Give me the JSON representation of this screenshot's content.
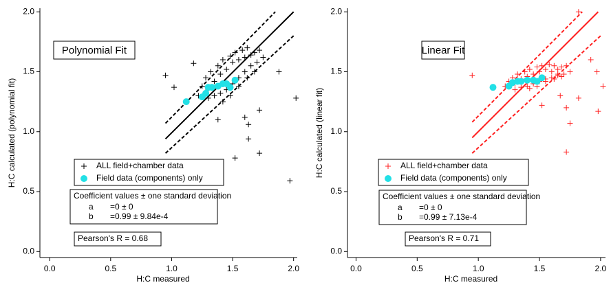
{
  "chart_data": [
    {
      "type": "scatter",
      "title": "Polynomial Fit",
      "ylabel": "H:C calculated (polynomial fit)",
      "xlabel": "H:C measured",
      "xlim": [
        -0.08,
        2.03
      ],
      "ylim": [
        -0.05,
        2.03
      ],
      "xticks": [
        {
          "value": 0,
          "label": "0.0"
        },
        {
          "value": 0.5,
          "label": "0.5"
        },
        {
          "value": 1,
          "label": "1.0"
        },
        {
          "value": 1.5,
          "label": "1.5"
        },
        {
          "value": 2,
          "label": "2.0"
        }
      ],
      "yticks": [
        {
          "value": 0,
          "label": "0.0"
        },
        {
          "value": 0.5,
          "label": "0.5"
        },
        {
          "value": 1,
          "label": "1.0"
        },
        {
          "value": 1.5,
          "label": "1.5"
        },
        {
          "value": 2,
          "label": "2.0"
        }
      ],
      "series": [
        {
          "name": "ALL field+chamber data",
          "color": "#000000",
          "marker": "plus",
          "x": [
            1.22,
            1.25,
            1.28,
            1.3,
            1.32,
            1.35,
            1.38,
            1.4,
            1.42,
            1.45,
            1.48,
            1.5,
            1.52,
            1.55,
            1.58,
            1.6,
            1.62,
            1.65,
            1.68,
            1.7,
            1.72,
            1.75,
            1.3,
            1.35,
            1.4,
            1.45,
            1.5,
            1.55,
            1.6,
            1.65,
            1.42,
            1.48,
            1.55,
            1.62,
            1.68,
            0.95,
            1.18,
            1.02,
            1.88,
            2.02,
            1.97,
            1.72,
            1.52,
            1.63,
            1.63,
            1.72,
            1.6,
            1.38
          ],
          "values": [
            1.3,
            1.38,
            1.45,
            1.35,
            1.5,
            1.42,
            1.55,
            1.48,
            1.6,
            1.52,
            1.63,
            1.58,
            1.66,
            1.6,
            1.68,
            1.62,
            1.7,
            1.64,
            1.66,
            1.58,
            1.68,
            1.62,
            1.28,
            1.3,
            1.32,
            1.35,
            1.4,
            1.45,
            1.5,
            1.55,
            1.25,
            1.3,
            1.38,
            1.45,
            1.5,
            1.47,
            1.57,
            1.37,
            1.5,
            1.28,
            0.59,
            0.82,
            0.78,
            0.94,
            1.06,
            1.18,
            1.12,
            1.1
          ]
        },
        {
          "name": "Field data (components) only",
          "color": "#22e0e6",
          "marker": "circle",
          "x": [
            1.12,
            1.25,
            1.28,
            1.3,
            1.33,
            1.38,
            1.42,
            1.45,
            1.48,
            1.52
          ],
          "values": [
            1.25,
            1.29,
            1.32,
            1.37,
            1.37,
            1.38,
            1.4,
            1.4,
            1.37,
            1.43
          ]
        },
        {
          "color": "#000000",
          "marker": "line",
          "style": "solid",
          "x": [
            0.95,
            2.0
          ],
          "values": [
            0.94,
            2.0
          ]
        },
        {
          "color": "#000000",
          "marker": "line",
          "style": "dashed",
          "x": [
            0.95,
            1.85
          ],
          "values": [
            1.07,
            2.0
          ]
        },
        {
          "color": "#000000",
          "marker": "line",
          "style": "dashed",
          "x": [
            0.95,
            2.0
          ],
          "values": [
            0.82,
            1.8
          ]
        }
      ],
      "coefficients": {
        "header": "Coefficient values ± one standard deviation",
        "rows": [
          [
            "a",
            "=0 ± 0"
          ],
          [
            "b",
            "=0.99 ± 9.84e-4"
          ]
        ]
      },
      "pearson": "Pearson's R = 0.68"
    },
    {
      "type": "scatter",
      "title": "Linear Fit",
      "ylabel": "H:C calculated (linear fit)",
      "xlabel": "H:C measured",
      "xlim": [
        -0.07,
        2.04
      ],
      "ylim": [
        -0.05,
        2.03
      ],
      "xticks": [
        {
          "value": 0,
          "label": "0.0"
        },
        {
          "value": 0.5,
          "label": "0.5"
        },
        {
          "value": 1,
          "label": "1.0"
        },
        {
          "value": 1.5,
          "label": "1.5"
        },
        {
          "value": 2,
          "label": "2.0"
        }
      ],
      "yticks": [
        {
          "value": 0,
          "label": "0.0"
        },
        {
          "value": 0.5,
          "label": "0.5"
        },
        {
          "value": 1,
          "label": "1.0"
        },
        {
          "value": 1.5,
          "label": "1.5"
        },
        {
          "value": 2,
          "label": "2.0"
        }
      ],
      "series": [
        {
          "name": "ALL field+chamber data",
          "color": "#ff2020",
          "marker": "plus",
          "x": [
            1.22,
            1.25,
            1.28,
            1.3,
            1.32,
            1.35,
            1.38,
            1.4,
            1.42,
            1.45,
            1.48,
            1.5,
            1.52,
            1.55,
            1.58,
            1.6,
            1.62,
            1.65,
            1.68,
            1.7,
            1.72,
            1.75,
            1.3,
            1.35,
            1.4,
            1.45,
            1.5,
            1.55,
            1.6,
            1.65,
            1.42,
            1.48,
            1.55,
            1.62,
            1.68,
            0.95,
            1.82,
            1.92,
            1.65,
            1.97,
            2.02,
            1.98,
            1.72,
            1.52,
            1.72,
            1.75,
            1.82,
            1.67
          ],
          "values": [
            1.38,
            1.42,
            1.45,
            1.4,
            1.48,
            1.44,
            1.5,
            1.46,
            1.52,
            1.48,
            1.54,
            1.5,
            1.55,
            1.52,
            1.56,
            1.5,
            1.55,
            1.52,
            1.54,
            1.48,
            1.55,
            1.5,
            1.35,
            1.37,
            1.38,
            1.4,
            1.42,
            1.44,
            1.45,
            1.47,
            1.36,
            1.38,
            1.42,
            1.44,
            1.46,
            1.47,
            2.0,
            1.6,
            1.48,
            1.5,
            1.38,
            1.17,
            0.83,
            1.22,
            1.2,
            1.07,
            1.28,
            1.3
          ]
        },
        {
          "name": "Field data (components) only",
          "color": "#22e0e6",
          "marker": "circle",
          "x": [
            1.12,
            1.25,
            1.28,
            1.32,
            1.35,
            1.4,
            1.45,
            1.48,
            1.52
          ],
          "values": [
            1.37,
            1.38,
            1.41,
            1.42,
            1.42,
            1.43,
            1.43,
            1.42,
            1.45
          ]
        },
        {
          "color": "#ff2020",
          "marker": "line",
          "style": "solid",
          "x": [
            0.95,
            1.98
          ],
          "values": [
            0.95,
            2.0
          ]
        },
        {
          "color": "#ff2020",
          "marker": "line",
          "style": "dashed",
          "x": [
            0.95,
            1.85
          ],
          "values": [
            1.08,
            2.0
          ]
        },
        {
          "color": "#ff2020",
          "marker": "line",
          "style": "dashed",
          "x": [
            0.95,
            2.0
          ],
          "values": [
            0.82,
            1.8
          ]
        }
      ],
      "coefficients": {
        "header": "Coefficient values ± one standard deviation",
        "rows": [
          [
            "a",
            "=0 ± 0"
          ],
          [
            "b",
            "=0.99 ± 7.13e-4"
          ]
        ]
      },
      "pearson": "Pearson's R = 0.71"
    }
  ]
}
